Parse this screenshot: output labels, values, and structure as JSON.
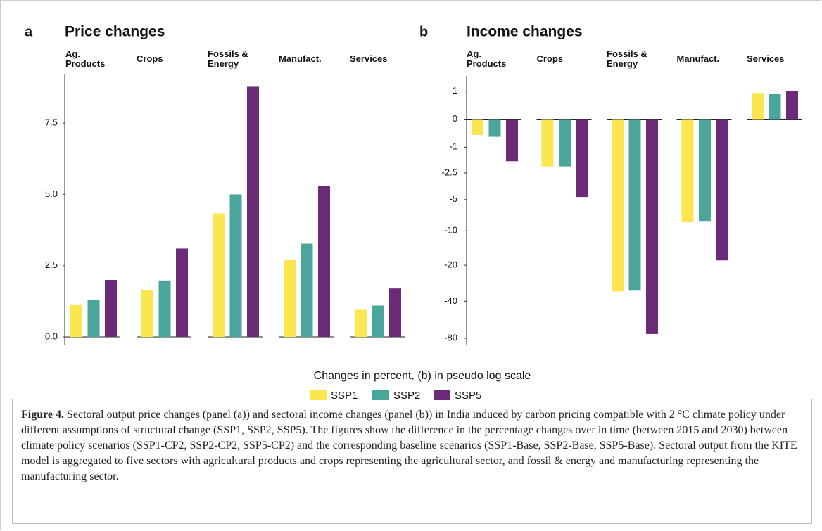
{
  "chart_data": [
    {
      "type": "bar",
      "panel": "a",
      "title": "Price changes",
      "yscale": "linear",
      "categories": [
        "Ag. Products",
        "Crops",
        "Fossils & Energy",
        "Manufact.",
        "Services"
      ],
      "series": [
        {
          "name": "SSP1",
          "color": "#fbe64f",
          "values": [
            1.14,
            1.65,
            4.33,
            2.7,
            0.95
          ]
        },
        {
          "name": "SSP2",
          "color": "#4aa69b",
          "values": [
            1.31,
            1.98,
            5.0,
            3.27,
            1.1
          ]
        },
        {
          "name": "SSP5",
          "color": "#6a2a78",
          "values": [
            2.0,
            3.1,
            8.8,
            5.3,
            1.7
          ]
        }
      ],
      "ylim": [
        -0.27,
        9.23
      ],
      "yticks": [
        {
          "value": 0,
          "label": "0.0"
        },
        {
          "value": 2.5,
          "label": "2.5"
        },
        {
          "value": 5,
          "label": "5.0"
        },
        {
          "value": 7.5,
          "label": "7.5"
        }
      ],
      "grid": false
    },
    {
      "type": "bar",
      "panel": "b",
      "title": "Income changes",
      "yscale": "pseudo_log",
      "categories": [
        "Ag. Products",
        "Crops",
        "Fossils & Energy",
        "Manufact.",
        "Services"
      ],
      "series": [
        {
          "name": "SSP1",
          "color": "#fbe64f",
          "values": [
            -0.5,
            -2.05,
            -33.2,
            -8.3,
            0.92
          ]
        },
        {
          "name": "SSP2",
          "color": "#4aa69b",
          "values": [
            -0.57,
            -2.05,
            -32.7,
            -8.1,
            0.88
          ]
        },
        {
          "name": "SSP5",
          "color": "#6a2a78",
          "values": [
            -1.73,
            -4.7,
            -73.9,
            -18.2,
            1.0
          ]
        }
      ],
      "ylim": [
        -90,
        1.8
      ],
      "yticks": [
        1,
        0,
        -1,
        -2.5,
        -5,
        -10,
        -20,
        -40,
        -80
      ],
      "grid": false
    }
  ],
  "figure": {
    "x_label": "Changes in percent, (b) in pseudo log scale",
    "caption_label": "Figure 4.",
    "caption": "Sectoral output price changes (panel (a)) and sectoral income changes (panel (b)) in India induced by carbon pricing compatible with 2 °C climate policy under different assumptions of structural change (SSP1, SSP2, SSP5). The figures show the difference in the percentage changes over in time (between 2015 and 2030) between climate policy scenarios (SSP1-CP2, SSP2-CP2, SSP5-CP2) and the corresponding baseline scenarios (SSP1-Base, SSP2-Base, SSP5-Base). Sectoral output from the KITE model is aggregated to five sectors with agricultural products and crops representing the agricultural sector, and fossil & energy and manufacturing representing the manufacturing sector."
  }
}
